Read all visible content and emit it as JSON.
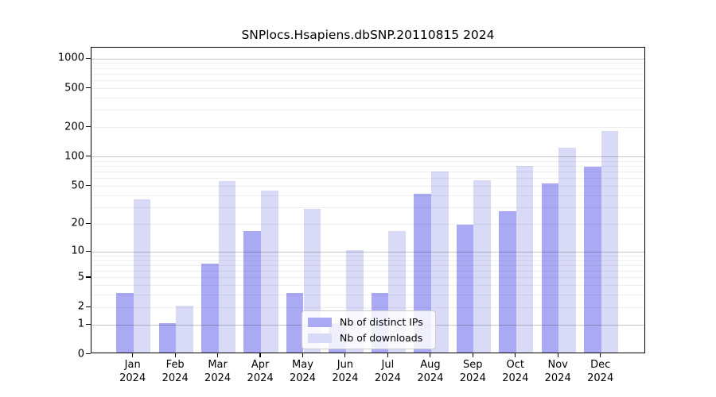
{
  "title": "SNPlocs.Hsapiens.dbSNP.20110815 2024",
  "chart_data": {
    "type": "bar",
    "title": "SNPlocs.Hsapiens.dbSNP.20110815 2024",
    "categories": [
      "Jan",
      "Feb",
      "Mar",
      "Apr",
      "May",
      "Jun",
      "Jul",
      "Aug",
      "Sep",
      "Oct",
      "Nov",
      "Dec"
    ],
    "year_label": "2024",
    "series": [
      {
        "name": "Nb of distinct IPs",
        "color": "#a9a9f4",
        "values": [
          3,
          1,
          7,
          16,
          3,
          1,
          3,
          40,
          19,
          26,
          51,
          76
        ]
      },
      {
        "name": "Nb of downloads",
        "color": "#d9d9f8",
        "values": [
          35,
          2,
          54,
          43,
          28,
          10,
          16,
          68,
          55,
          77,
          118,
          175
        ]
      }
    ],
    "xlabel": "",
    "ylabel": "",
    "yscale": "log10(value+1)",
    "yticks": [
      0,
      1,
      2,
      5,
      10,
      20,
      50,
      100,
      200,
      500,
      1000
    ],
    "ylim": [
      0,
      1300
    ],
    "grid": {
      "major_values": [
        1,
        10,
        100,
        1000
      ],
      "minor_values": [
        2,
        3,
        4,
        5,
        6,
        7,
        8,
        9,
        20,
        30,
        40,
        50,
        60,
        70,
        80,
        90,
        200,
        300,
        400,
        500,
        600,
        700,
        800,
        900
      ]
    },
    "legend_position": "bottom-center"
  },
  "colors": {
    "background": "#ffffff",
    "axis": "#000000",
    "major_grid": "rgba(0,0,0,0.22)",
    "minor_grid": "rgba(0,0,0,0.06)",
    "legend_border": "#cccccc",
    "legend_bg": "rgba(255,255,255,0.82)"
  }
}
